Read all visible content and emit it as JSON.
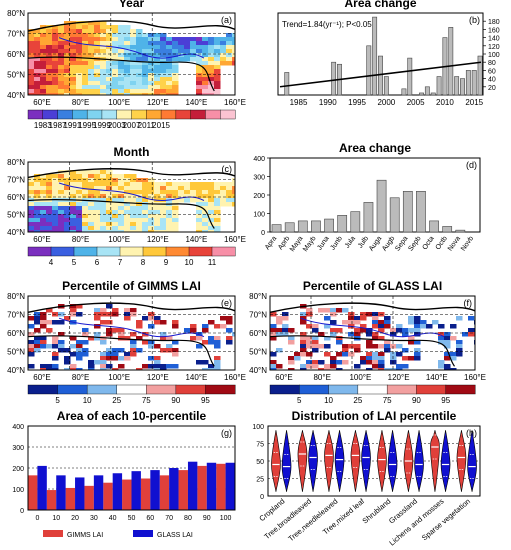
{
  "chart_data": [
    {
      "panel": "a",
      "type": "map",
      "title": "Year",
      "lon_ticks": [
        "60°E",
        "80°E",
        "100°E",
        "120°E",
        "140°E",
        "160°E"
      ],
      "lat_ticks": [
        "40°N",
        "50°N",
        "60°N",
        "70°N",
        "80°N"
      ],
      "colorbar": {
        "labels": [
          "1983",
          "1987",
          "1991",
          "1995",
          "1999",
          "2003",
          "2007",
          "2011",
          "2015"
        ],
        "colors": [
          "#7b2fbf",
          "#4b3fd6",
          "#3a7fe0",
          "#4fb3e8",
          "#7fd3f0",
          "#a8e4f5",
          "#fff3b0",
          "#ffd24a",
          "#ffa733",
          "#ff7a33",
          "#e8443a",
          "#c41e3a",
          "#f78fa7",
          "#fbc4d2"
        ]
      }
    },
    {
      "panel": "b",
      "type": "bar",
      "title": "Area change",
      "annotation": "Trend=1.84(yr⁻¹); P<0.05",
      "x": [
        1982,
        1983,
        1984,
        1985,
        1986,
        1987,
        1988,
        1989,
        1990,
        1991,
        1992,
        1993,
        1994,
        1995,
        1996,
        1997,
        1998,
        1999,
        2000,
        2001,
        2002,
        2003,
        2004,
        2005,
        2006,
        2007,
        2008,
        2009,
        2010,
        2011,
        2012,
        2013,
        2014,
        2015,
        2016
      ],
      "values": [
        0,
        55,
        0,
        0,
        0,
        0,
        0,
        0,
        0,
        80,
        75,
        0,
        0,
        0,
        0,
        120,
        190,
        95,
        45,
        0,
        0,
        15,
        90,
        0,
        5,
        20,
        5,
        45,
        140,
        165,
        45,
        40,
        60,
        60,
        95
      ],
      "xticks": [
        1985,
        1990,
        1995,
        2000,
        2005,
        2010,
        2015
      ],
      "ylim": [
        0,
        200
      ],
      "yticks": [
        20,
        40,
        60,
        80,
        100,
        120,
        140,
        160,
        180
      ],
      "trend": {
        "start": 20,
        "end": 80
      }
    },
    {
      "panel": "c",
      "type": "map",
      "title": "Month",
      "lon_ticks": [
        "60°E",
        "80°E",
        "100°E",
        "120°E",
        "140°E",
        "160°E"
      ],
      "lat_ticks": [
        "40°N",
        "50°N",
        "60°N",
        "70°N",
        "80°N"
      ],
      "colorbar": {
        "labels": [
          "4",
          "5",
          "6",
          "7",
          "8",
          "9",
          "10",
          "11"
        ],
        "colors": [
          "#7b2fbf",
          "#3a5fe0",
          "#4fb3e8",
          "#a8e4f5",
          "#fff3b0",
          "#ffc83a",
          "#ff8a33",
          "#e8443a",
          "#f78fa7"
        ]
      }
    },
    {
      "panel": "d",
      "type": "bar",
      "title": "Area change",
      "categories": [
        "Apra",
        "Aprb",
        "Maya",
        "Mayb",
        "Juna",
        "Junb",
        "Jula",
        "Julb",
        "Auga",
        "Augb",
        "Sepa",
        "Sepb",
        "Octa",
        "Octb",
        "Nova",
        "Novb"
      ],
      "values": [
        40,
        50,
        60,
        60,
        70,
        90,
        110,
        160,
        280,
        185,
        220,
        220,
        60,
        30,
        10,
        0
      ],
      "ylim": [
        0,
        400
      ],
      "yticks": [
        0,
        100,
        200,
        300,
        400
      ]
    },
    {
      "panel": "e",
      "type": "map",
      "title": "Percentile of GIMMS LAI",
      "lon_ticks": [
        "60°E",
        "80°E",
        "100°E",
        "120°E",
        "140°E",
        "160°E"
      ],
      "lat_ticks": [
        "40°N",
        "50°N",
        "60°N",
        "70°N",
        "80°N"
      ],
      "colorbar": {
        "labels": [
          "5",
          "10",
          "25",
          "75",
          "90",
          "95"
        ],
        "colors": [
          "#0a1f8c",
          "#1f5fd6",
          "#7fb8ec",
          "#ffffff",
          "#f2a0a0",
          "#e0403a",
          "#a00a14"
        ]
      }
    },
    {
      "panel": "f",
      "type": "map",
      "title": "Percentile of GLASS LAI",
      "lon_ticks": [
        "60°E",
        "80°E",
        "100°E",
        "120°E",
        "140°E",
        "160°E"
      ],
      "lat_ticks": [
        "40°N",
        "50°N",
        "60°N",
        "70°N",
        "80°N"
      ],
      "colorbar": {
        "labels": [
          "5",
          "10",
          "25",
          "75",
          "90",
          "95"
        ],
        "colors": [
          "#0a1f8c",
          "#1f5fd6",
          "#7fb8ec",
          "#ffffff",
          "#f2a0a0",
          "#e0403a",
          "#a00a14"
        ]
      }
    },
    {
      "panel": "g",
      "type": "bar",
      "title": "Area of each 10-percentile",
      "categories": [
        "0",
        "10",
        "20",
        "30",
        "40",
        "50",
        "60",
        "70",
        "80",
        "90",
        "100"
      ],
      "series": [
        {
          "name": "GIMMS LAI",
          "color": "#e0403a",
          "values": [
            165,
            95,
            105,
            115,
            130,
            145,
            150,
            165,
            190,
            210,
            220
          ]
        },
        {
          "name": "GLASS LAI",
          "color": "#1010d0",
          "values": [
            210,
            165,
            155,
            165,
            175,
            185,
            190,
            200,
            230,
            225,
            225
          ]
        }
      ],
      "ylim": [
        0,
        400
      ],
      "yticks": [
        0,
        100,
        200,
        300,
        400
      ],
      "xticks": [
        "0",
        "10",
        "20",
        "30",
        "40",
        "50",
        "60",
        "70",
        "80",
        "90",
        "100"
      ]
    },
    {
      "panel": "h",
      "type": "violin",
      "title": "Distribution of LAI percentile",
      "categories": [
        "Cropland",
        "Tree,broadleaved",
        "Tree,needleleaved",
        "Tree,mixed leaf",
        "Shrubland",
        "Grassland",
        "Lichens and mosses",
        "Sparse vegetation"
      ],
      "series": [
        {
          "name": "GIMMS LAI",
          "color": "#e0403a",
          "medians": [
            45,
            60,
            58,
            58,
            52,
            50,
            70,
            55
          ]
        },
        {
          "name": "GLASS LAI",
          "color": "#1010d0",
          "medians": [
            42,
            55,
            52,
            55,
            45,
            45,
            45,
            42
          ]
        }
      ],
      "ylim": [
        0,
        100
      ],
      "yticks": [
        0,
        25,
        50,
        75,
        100
      ]
    }
  ]
}
